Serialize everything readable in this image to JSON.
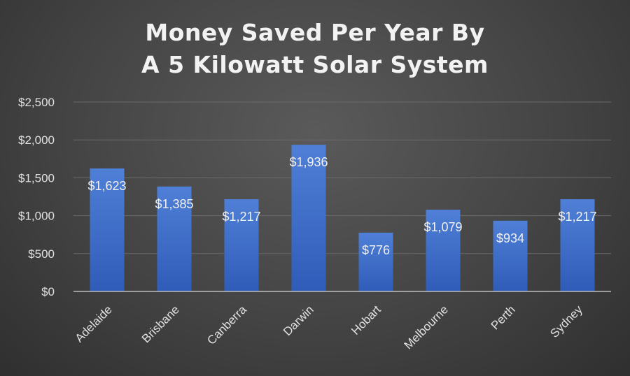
{
  "chart_data": {
    "type": "bar",
    "title_lines": [
      "Money Saved Per Year By",
      "A 5 Kilowatt Solar System"
    ],
    "categories": [
      "Adelaide",
      "Brisbane",
      "Canberra",
      "Darwin",
      "Hobart",
      "Melbourne",
      "Perth",
      "Sydney"
    ],
    "values": [
      1623,
      1385,
      1217,
      1936,
      776,
      1079,
      934,
      1217
    ],
    "data_labels": [
      "$1,623",
      "$1,385",
      "$1,217",
      "$1,936",
      "$776",
      "$1,079",
      "$934",
      "$1,217"
    ],
    "y_ticks": [
      0,
      500,
      1000,
      1500,
      2000,
      2500
    ],
    "y_tick_labels": [
      "$0",
      "$500",
      "$1,000",
      "$1,500",
      "$2,000",
      "$2,500"
    ],
    "ylim": [
      0,
      2500
    ],
    "xlabel": "",
    "ylabel": "",
    "grid": true,
    "legend": "none",
    "colors": {
      "bar_top": "#4f7fd6",
      "bar_bottom": "#2f5cb8",
      "grid": "#6a6a6a",
      "axis": "#bdbdbd",
      "text": "#e0e0e0"
    }
  }
}
